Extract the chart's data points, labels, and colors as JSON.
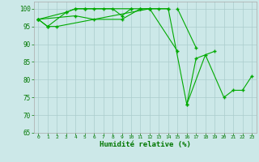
{
  "xlabel": "Humidité relative (%)",
  "xlim": [
    -0.5,
    23.5
  ],
  "ylim": [
    65,
    102
  ],
  "yticks": [
    65,
    70,
    75,
    80,
    85,
    90,
    95,
    100
  ],
  "xticks": [
    0,
    1,
    2,
    3,
    4,
    5,
    6,
    7,
    8,
    9,
    10,
    11,
    12,
    13,
    14,
    15,
    16,
    17,
    18,
    19,
    20,
    21,
    22,
    23
  ],
  "background_color": "#cce8e8",
  "grid_color": "#aacccc",
  "line_color": "#00aa00",
  "series2": {
    "line1_x": [
      0,
      1,
      3,
      4,
      5,
      10,
      11,
      12,
      14
    ],
    "line1_y": [
      97,
      95,
      99,
      100,
      100,
      100,
      100,
      100,
      100
    ],
    "line2_x": [
      0,
      3,
      4,
      5,
      6,
      7,
      8,
      9,
      10
    ],
    "line2_y": [
      97,
      99,
      100,
      100,
      100,
      100,
      100,
      98,
      100
    ],
    "line3_x": [
      0,
      4,
      6,
      9,
      11,
      12,
      15
    ],
    "line3_y": [
      97,
      98,
      97,
      97,
      100,
      100,
      88
    ],
    "line4_x": [
      0,
      1,
      2,
      12,
      13,
      14,
      16,
      17,
      19
    ],
    "line4_y": [
      97,
      95,
      95,
      100,
      100,
      100,
      73,
      86,
      88
    ],
    "line5_x": [
      15,
      17
    ],
    "line5_y": [
      100,
      89
    ],
    "line6_x": [
      16,
      18,
      20,
      21,
      22,
      23
    ],
    "line6_y": [
      73,
      87,
      75,
      77,
      77,
      81
    ]
  }
}
